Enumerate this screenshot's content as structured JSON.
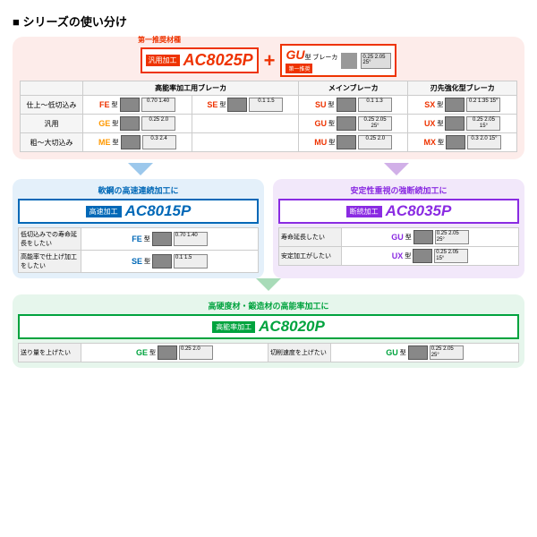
{
  "title": "シリーズの使い分け",
  "top": {
    "rec_label": "第一推奨材種",
    "ac8025p": {
      "tag": "汎用加工",
      "grade": "AC8025P",
      "color": "#e30000"
    },
    "gu": {
      "label": "GU",
      "suffix": "型 ブレーカ",
      "sub": "第一推奨",
      "det": "0.25 2.05 25°"
    }
  },
  "table": {
    "headers": [
      "",
      "高能率加工用ブレーカ",
      "",
      "メインブレーカ",
      "刃先強化型ブレーカ"
    ],
    "rows": [
      {
        "label": "仕上〜低切込み",
        "cells": [
          {
            "t": "FE",
            "c": "#e30",
            "d": "0.70 1.40"
          },
          {
            "t": "SE",
            "c": "#e30",
            "d": "0.1 1.5"
          },
          {
            "t": "SU",
            "c": "#e30",
            "d": "0.1 1.3"
          },
          {
            "t": "SX",
            "c": "#e30",
            "d": "0.2 1.35 15°"
          }
        ]
      },
      {
        "label": "汎用",
        "cells": [
          {
            "t": "GE",
            "c": "#f90",
            "d": "0.25 2.0"
          },
          null,
          {
            "t": "GU",
            "c": "#e30",
            "d": "0.25 2.05 25°"
          },
          {
            "t": "UX",
            "c": "#e30",
            "d": "0.25 2.05 15°"
          }
        ]
      },
      {
        "label": "粗〜大切込み",
        "cells": [
          {
            "t": "ME",
            "c": "#f90",
            "d": "0.3 2.4"
          },
          null,
          {
            "t": "MU",
            "c": "#e30",
            "d": "0.25 2.0"
          },
          {
            "t": "MX",
            "c": "#e30",
            "d": "0.3 2.0 15°"
          }
        ]
      }
    ]
  },
  "ac8015p": {
    "cap": "軟鋼の高速連続加工に",
    "color": "#0068b7",
    "bg": "#e4f0fa",
    "tag": "高速加工",
    "grade": "AC8015P",
    "rows": [
      {
        "l": "低切込みでの寿命延長をしたい",
        "t": "FE",
        "d": "0.70 1.40"
      },
      {
        "l": "高能率で仕上げ加工をしたい",
        "t": "SE",
        "d": "0.1 1.5"
      }
    ]
  },
  "ac8035p": {
    "cap": "安定性重視の強断続加工に",
    "color": "#8a2be2",
    "bg": "#f2e8fa",
    "tag": "断続加工",
    "grade": "AC8035P",
    "rows": [
      {
        "l": "寿命延長したい",
        "t": "GU",
        "d": "0.25 2.05 25°"
      },
      {
        "l": "安定加工がしたい",
        "t": "UX",
        "d": "0.25 2.05 15°"
      }
    ]
  },
  "ac8020p": {
    "cap": "高硬度材・鍛造材の高能率加工に",
    "color": "#00a33e",
    "bg": "#e6f6ec",
    "tag": "高能率加工",
    "grade": "AC8020P",
    "rows": [
      {
        "l": "送り量を上げたい",
        "t": "GE",
        "d": "0.25 2.0"
      },
      {
        "l": "切削速度を上げたい",
        "t": "GU",
        "d": "0.25 2.05 25°"
      }
    ]
  },
  "suffix": "型"
}
